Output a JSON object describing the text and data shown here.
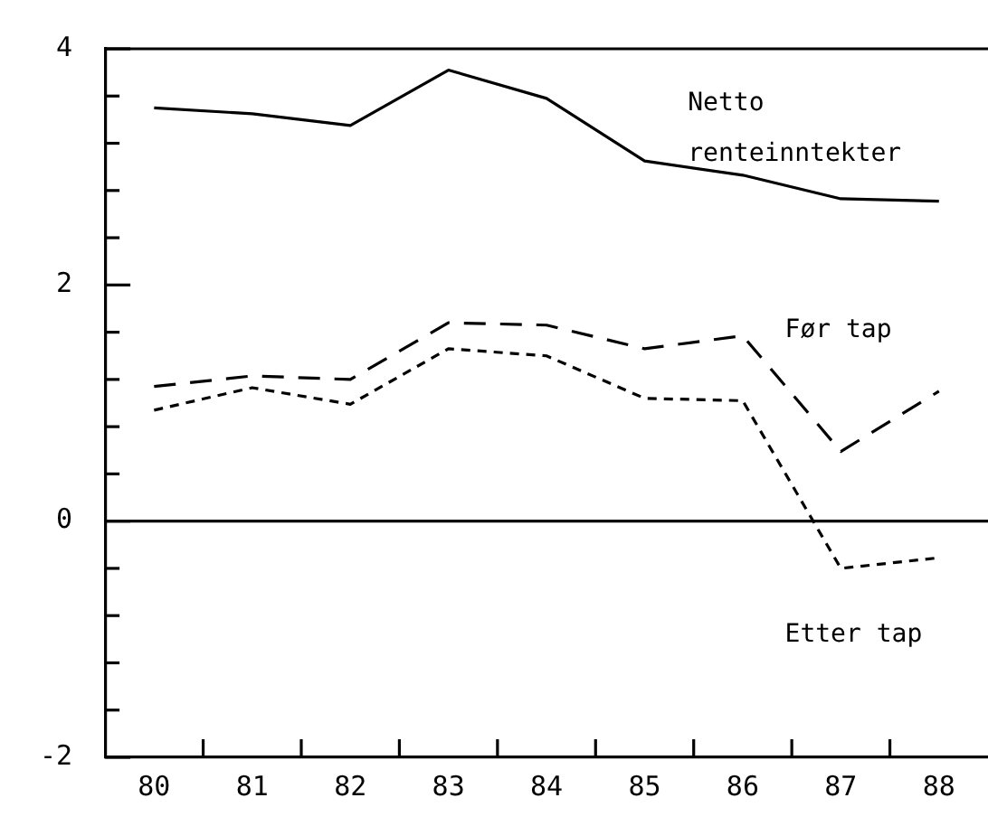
{
  "chart_data": {
    "type": "line",
    "categories": [
      "80",
      "81",
      "82",
      "83",
      "84",
      "85",
      "86",
      "87",
      "88"
    ],
    "series": [
      {
        "name": "Netto renteinntekter",
        "color": "#000000",
        "line_style": "solid",
        "values": [
          3.5,
          3.45,
          3.35,
          3.82,
          3.58,
          3.05,
          2.93,
          2.73,
          2.71
        ]
      },
      {
        "name": "Før tap",
        "color": "#000000",
        "line_style": "dashed",
        "values": [
          1.14,
          1.23,
          1.2,
          1.68,
          1.66,
          1.46,
          1.57,
          0.59,
          1.1
        ]
      },
      {
        "name": "Etter tap",
        "color": "#000000",
        "line_style": "dotted",
        "values": [
          0.94,
          1.13,
          0.99,
          1.46,
          1.4,
          1.04,
          1.02,
          -0.4,
          -0.31
        ]
      }
    ],
    "ylim": [
      -2,
      4
    ],
    "yticks": [
      -2,
      {
        "value": -1.6,
        "label": null
      },
      {
        "value": -1.2,
        "label": null
      },
      {
        "value": -0.8,
        "label": null
      },
      {
        "value": -0.4,
        "label": null
      },
      0,
      {
        "value": 0.4,
        "label": null
      },
      {
        "value": 0.8,
        "label": null
      },
      {
        "value": 1.2,
        "label": null
      },
      {
        "value": 1.6,
        "label": null
      },
      2,
      {
        "value": 2.4,
        "label": null
      },
      {
        "value": 2.8,
        "label": null
      },
      {
        "value": 3.2,
        "label": null
      },
      {
        "value": 3.6,
        "label": null
      },
      4
    ],
    "ref_lines": [
      {
        "axis": "y",
        "value": 0,
        "color": "#000000"
      }
    ],
    "grid": false,
    "legend": false,
    "marker": "none"
  }
}
